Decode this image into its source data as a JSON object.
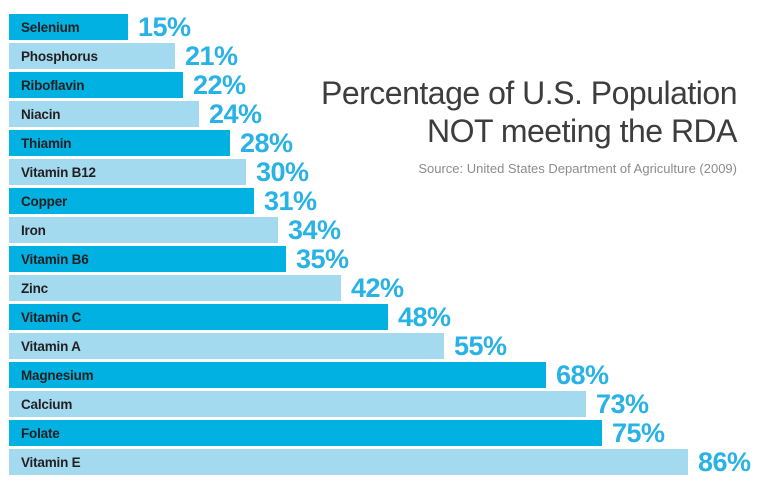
{
  "title": {
    "line1": "Percentage of U.S. Population",
    "line2": "NOT meeting the RDA"
  },
  "source": "Source: United States Department of Agriculture (2009)",
  "palette": {
    "background": "#ffffff",
    "bar_dark": "#00b1e2",
    "bar_light": "#a3daf0",
    "value_text": "#29b2e5",
    "label_text": "#231f20",
    "title_text": "#3d3d3d",
    "source_text": "#8c8c8e"
  },
  "chart_data": {
    "type": "bar",
    "orientation": "horizontal",
    "title": "Percentage of U.S. Population NOT meeting the RDA",
    "subtitle": "Source: United States Department of Agriculture (2009)",
    "categories": [
      "Selenium",
      "Phosphorus",
      "Riboflavin",
      "Niacin",
      "Thiamin",
      "Vitamin B12",
      "Copper",
      "Iron",
      "Vitamin B6",
      "Zinc",
      "Vitamin C",
      "Vitamin A",
      "Magnesium",
      "Calcium",
      "Folate",
      "Vitamin E"
    ],
    "values": [
      15,
      21,
      22,
      24,
      28,
      30,
      31,
      34,
      35,
      42,
      48,
      55,
      68,
      73,
      75,
      86
    ],
    "value_labels": [
      "15%",
      "21%",
      "22%",
      "24%",
      "28%",
      "30%",
      "31%",
      "34%",
      "35%",
      "42%",
      "48%",
      "55%",
      "68%",
      "73%",
      "75%",
      "86%"
    ],
    "bar_shades": [
      "dark",
      "light",
      "dark",
      "light",
      "dark",
      "light",
      "dark",
      "light",
      "dark",
      "light",
      "dark",
      "light",
      "dark",
      "light",
      "dark",
      "light"
    ],
    "value_suffix": "%",
    "xlim": [
      0,
      90
    ],
    "grid": false,
    "legend": false,
    "data_labels_position": "right-of-bar"
  }
}
